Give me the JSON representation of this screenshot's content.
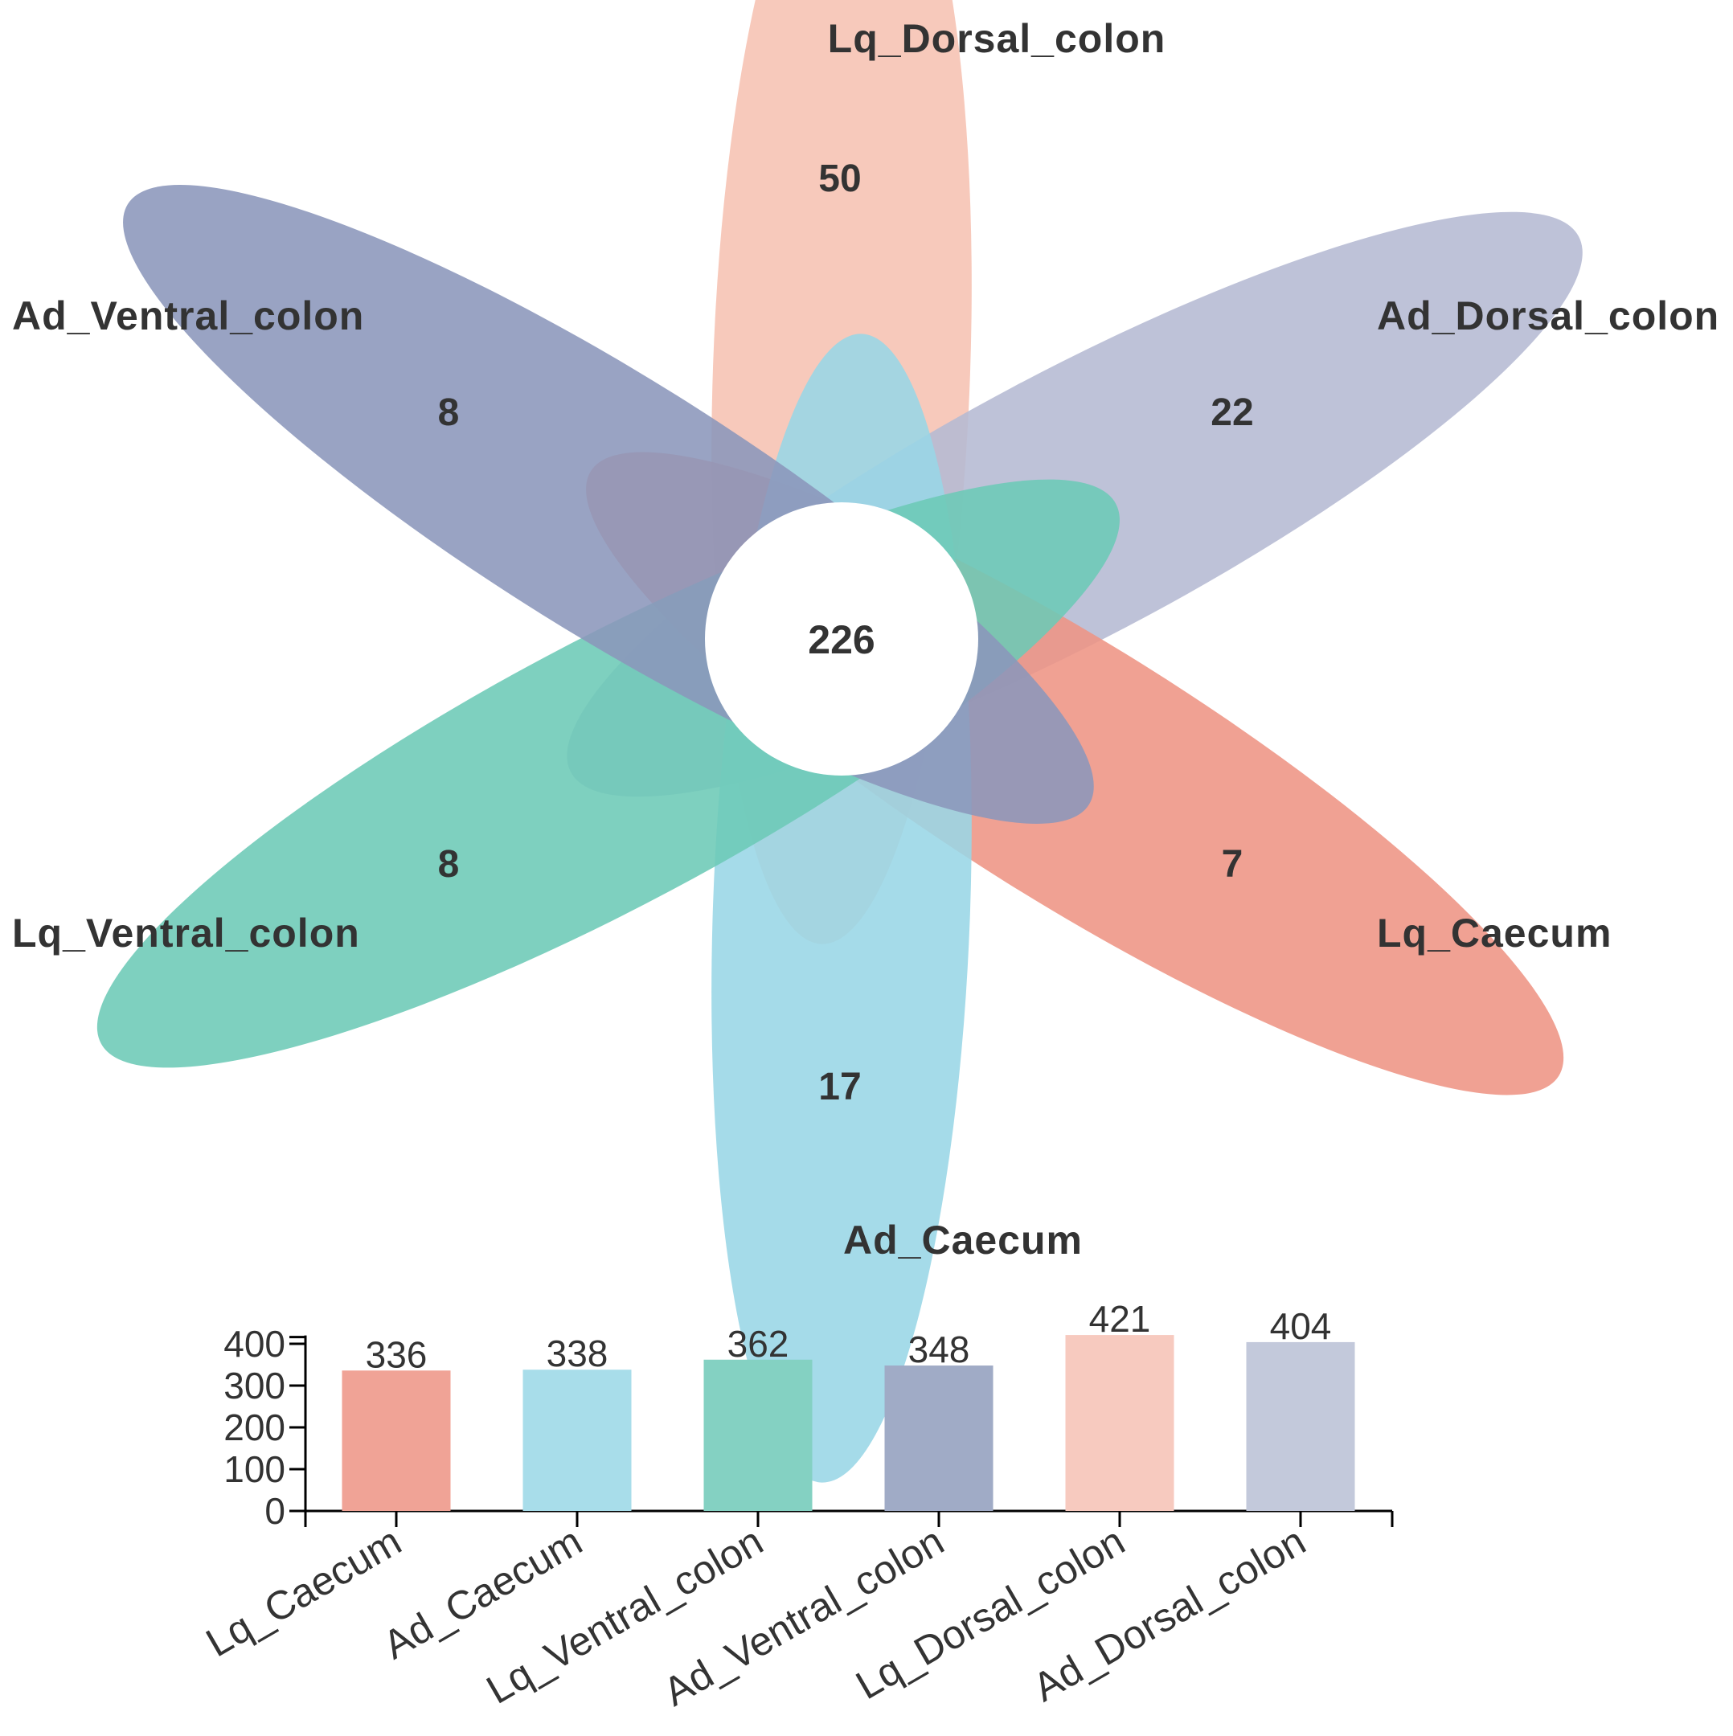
{
  "chart_data": [
    {
      "type": "flower-venn",
      "core": {
        "value": 226
      },
      "petals": [
        {
          "name": "Lq_Dorsal_colon",
          "unique": 50,
          "color": "#F6C1B2"
        },
        {
          "name": "Ad_Dorsal_colon",
          "unique": 22,
          "color": "#B5BAD3"
        },
        {
          "name": "Lq_Caecum",
          "unique": 7,
          "color": "#EE9484"
        },
        {
          "name": "Ad_Caecum",
          "unique": 17,
          "color": "#98D6E6"
        },
        {
          "name": "Lq_Ventral_colon",
          "unique": 8,
          "color": "#6CC9B6"
        },
        {
          "name": "Ad_Ventral_colon",
          "unique": 8,
          "color": "#8B96BB"
        }
      ]
    },
    {
      "type": "bar",
      "categories": [
        "Lq_Caecum",
        "Ad_Caecum",
        "Lq_Ventral_colon",
        "Ad_Ventral_colon",
        "Lq_Dorsal_colon",
        "Ad_Dorsal_colon"
      ],
      "values": [
        336,
        338,
        362,
        348,
        421,
        404
      ],
      "colors": [
        "#F0A396",
        "#A8DDEA",
        "#84D1C2",
        "#A0ABC6",
        "#F7CABF",
        "#C3C9DB"
      ],
      "yticks": [
        0,
        100,
        200,
        300,
        400
      ],
      "ylim": [
        0,
        420
      ],
      "xlabel": "",
      "ylabel": "",
      "title": ""
    }
  ]
}
